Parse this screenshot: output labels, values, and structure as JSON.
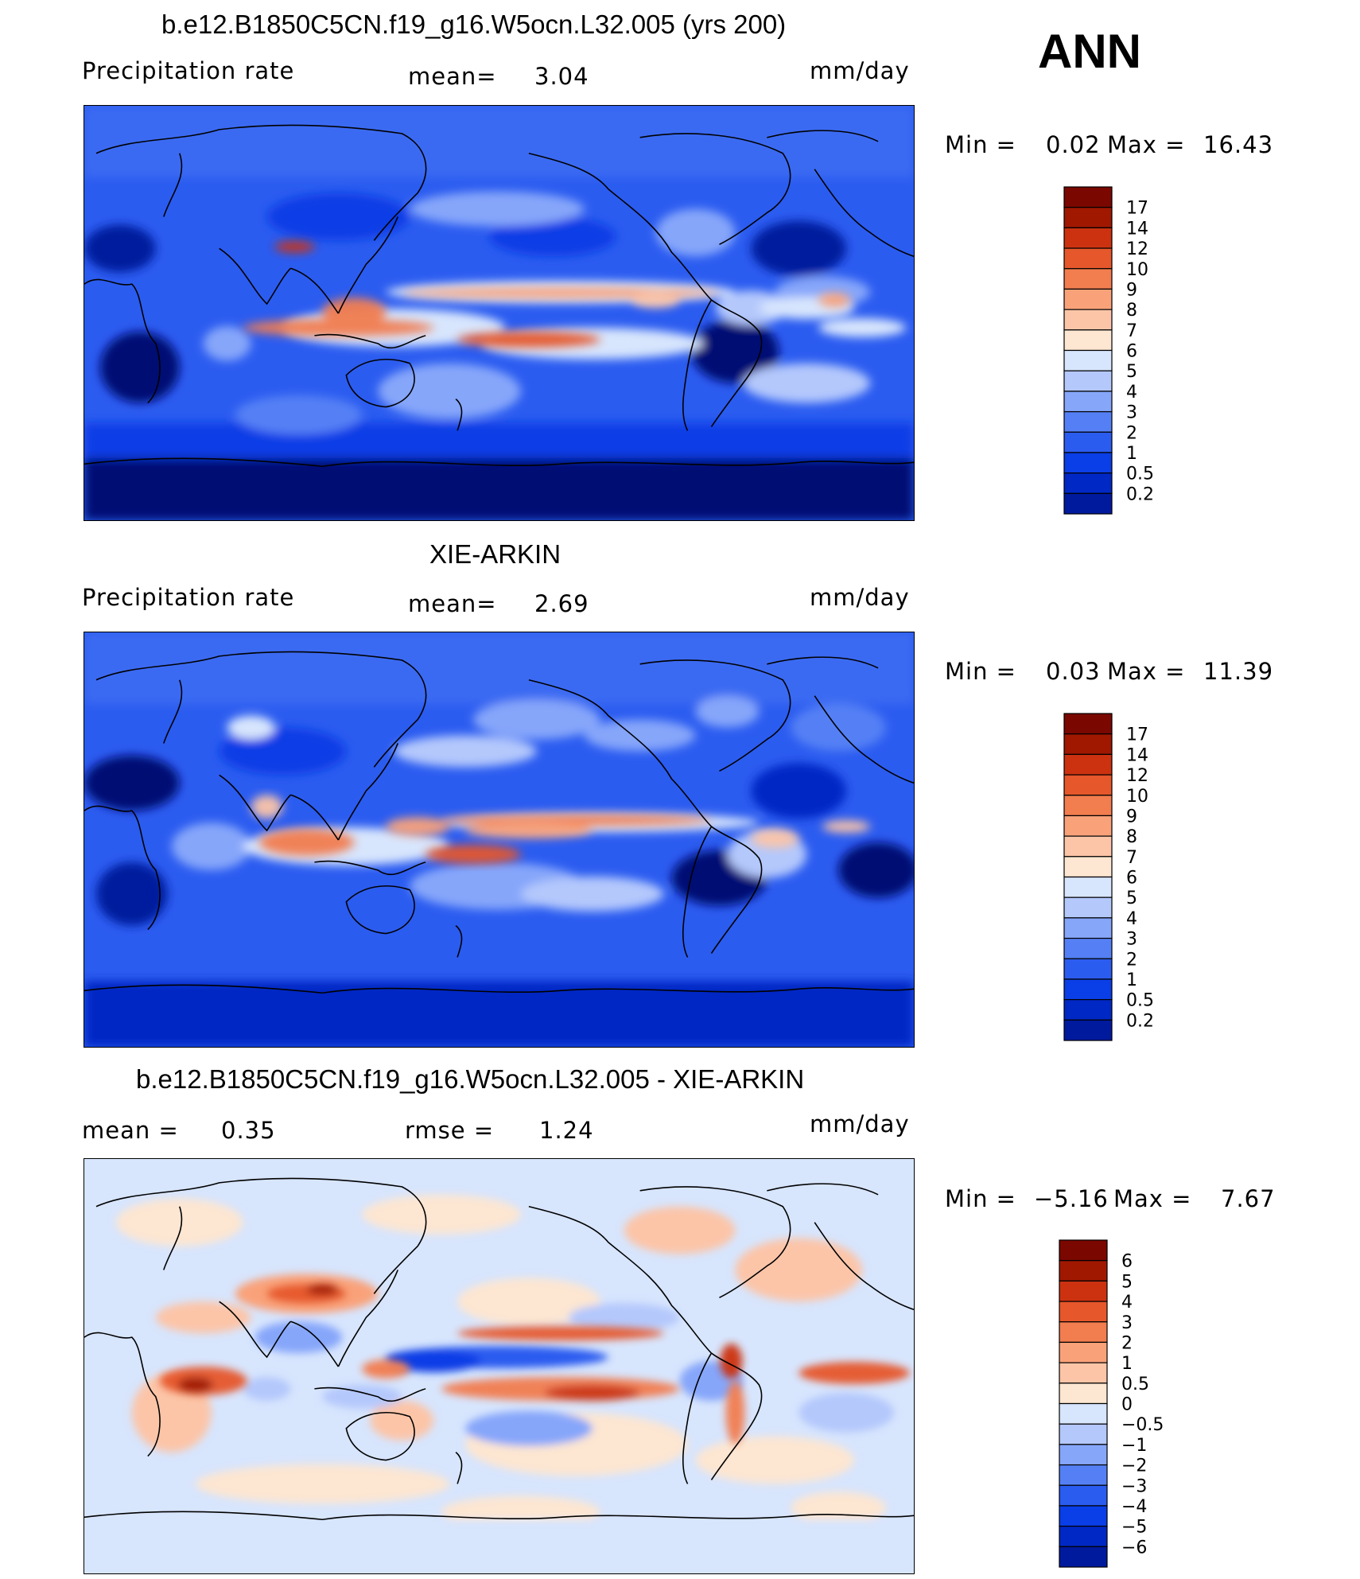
{
  "season_label": "ANN",
  "panels": [
    {
      "title": "b.e12.B1850C5CN.f19_g16.W5ocn.L32.005 (yrs 200)",
      "left_label": "Precipitation  rate",
      "mean_label": "mean=",
      "mean_value": "3.04",
      "units": "mm/day",
      "min_label": "Min  =",
      "min_value": "0.02",
      "max_label": "Max  =",
      "max_value": "16.43",
      "colorbar_ticks": [
        "17",
        "14",
        "12",
        "10",
        "9",
        "8",
        "7",
        "6",
        "5",
        "4",
        "3",
        "2",
        "1",
        "0.5",
        "0.2"
      ]
    },
    {
      "title": "XIE-ARKIN",
      "left_label": "Precipitation  rate",
      "mean_label": "mean=",
      "mean_value": "2.69",
      "units": "mm/day",
      "min_label": "Min  =",
      "min_value": "0.03",
      "max_label": "Max  =",
      "max_value": "11.39",
      "colorbar_ticks": [
        "17",
        "14",
        "12",
        "10",
        "9",
        "8",
        "7",
        "6",
        "5",
        "4",
        "3",
        "2",
        "1",
        "0.5",
        "0.2"
      ]
    },
    {
      "title": "b.e12.B1850C5CN.f19_g16.W5ocn.L32.005 - XIE-ARKIN",
      "left_label": "mean  =",
      "left_value": "0.35",
      "mean_label": "rmse  =",
      "mean_value": "1.24",
      "units": "mm/day",
      "min_label": "Min  =",
      "min_value": "−5.16",
      "max_label": "Max  =",
      "max_value": "7.67",
      "colorbar_ticks": [
        "6",
        "5",
        "4",
        "3",
        "2",
        "1",
        "0.5",
        "0",
        "−0.5",
        "−1",
        "−2",
        "−3",
        "−4",
        "−5",
        "−6"
      ]
    }
  ],
  "colors": {
    "precip_scale": [
      "#000a73",
      "#001a9e",
      "#0028c4",
      "#0a3ee6",
      "#2b5cf0",
      "#5580f5",
      "#86a6fa",
      "#b4c8fc",
      "#d7e5fd",
      "#fde6d2",
      "#fcc5a8",
      "#f9a27a",
      "#f27d4f",
      "#e6572b",
      "#cc3210",
      "#a01800",
      "#7a0800"
    ],
    "diff_scale": [
      "#000a73",
      "#001a9e",
      "#0028c4",
      "#0a3ee6",
      "#2b5cf0",
      "#5580f5",
      "#86a6fa",
      "#b4c8fc",
      "#d7e5fd",
      "#fde6d2",
      "#fcc5a8",
      "#f9a27a",
      "#f27d4f",
      "#e6572b",
      "#cc3210",
      "#a01800",
      "#7a0800"
    ]
  }
}
